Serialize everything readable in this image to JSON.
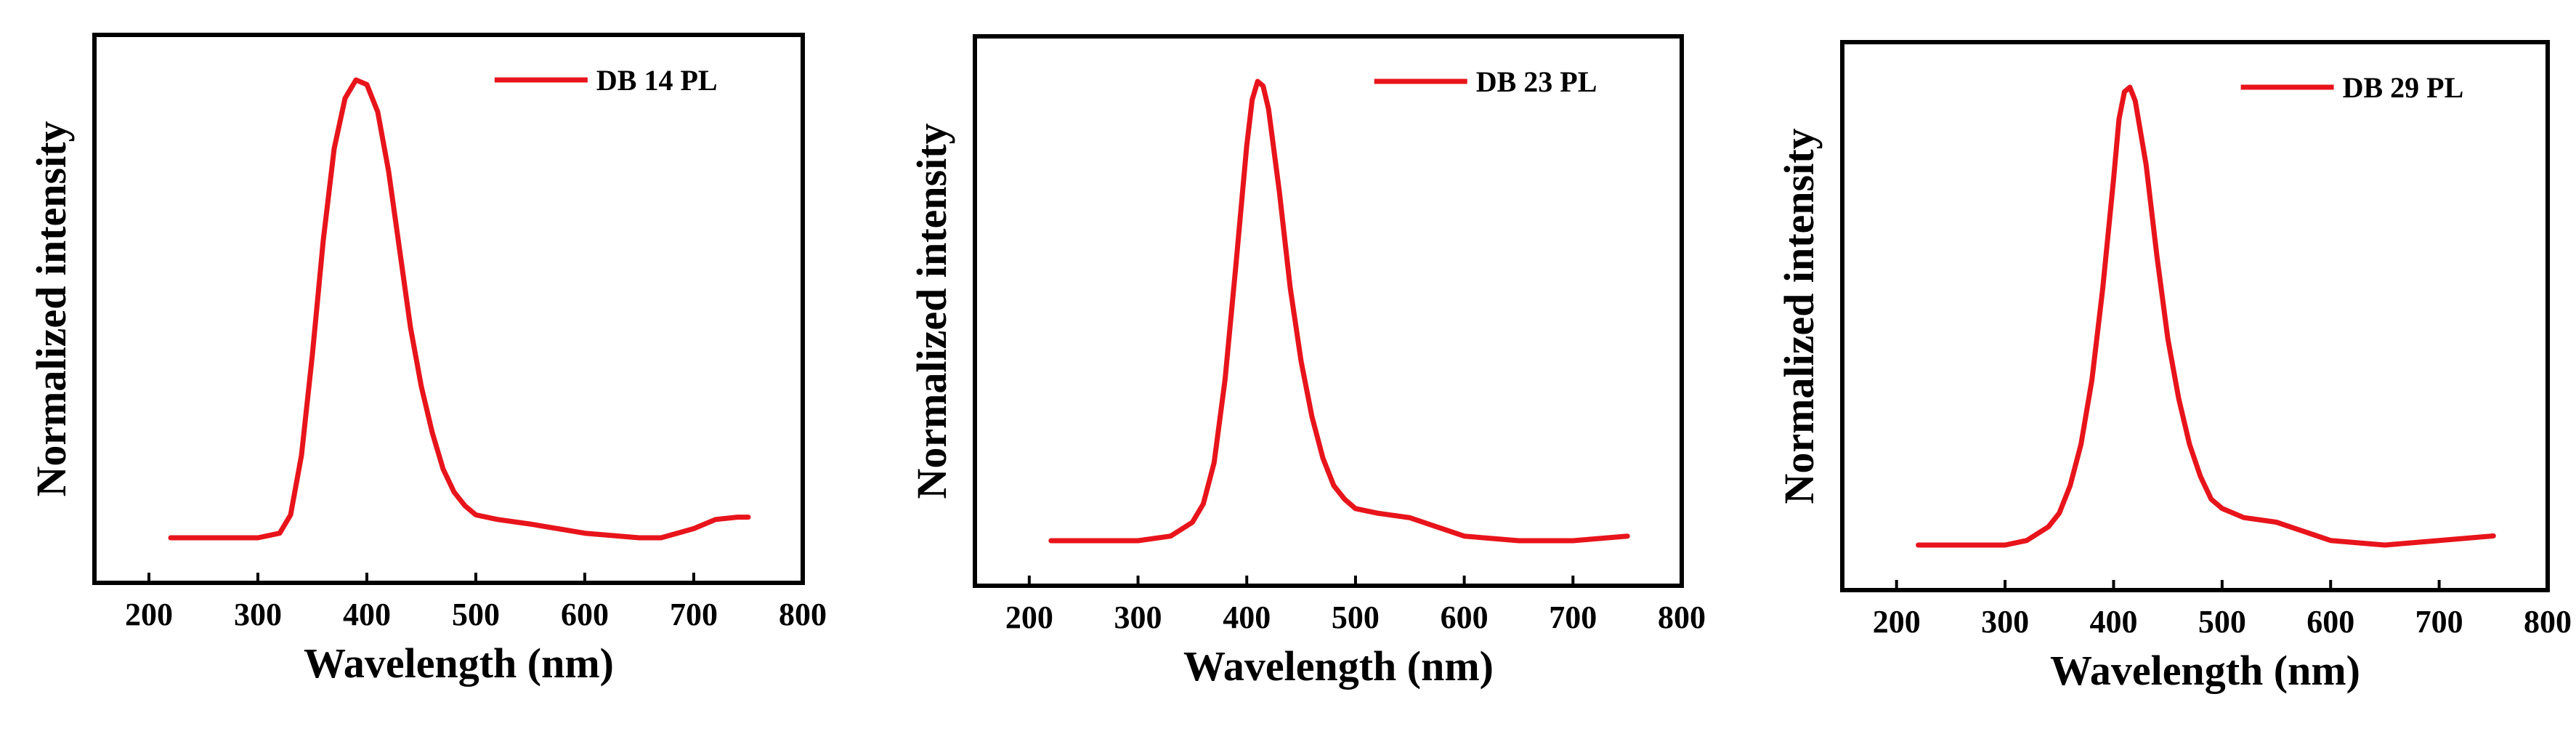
{
  "chart_data": [
    {
      "type": "line",
      "title": "",
      "xlabel": "Wavelength (nm)",
      "ylabel": "Normalized intensity",
      "xlim": [
        150,
        800
      ],
      "ylim": [
        0,
        1.06
      ],
      "xticks": [
        "200",
        "300",
        "400",
        "500",
        "600",
        "700",
        "800"
      ],
      "legend": "top-right",
      "series": [
        {
          "name": "DB 14 PL",
          "color": "#e8141b",
          "x": [
            220,
            250,
            300,
            320,
            330,
            340,
            350,
            360,
            370,
            380,
            390,
            400,
            410,
            420,
            430,
            440,
            450,
            460,
            470,
            480,
            490,
            500,
            520,
            550,
            600,
            650,
            670,
            700,
            720,
            740,
            750
          ],
          "y": [
            0.0,
            0.0,
            0.0,
            0.01,
            0.05,
            0.18,
            0.4,
            0.65,
            0.85,
            0.96,
            1.0,
            0.99,
            0.93,
            0.8,
            0.63,
            0.46,
            0.33,
            0.23,
            0.15,
            0.1,
            0.07,
            0.05,
            0.04,
            0.03,
            0.01,
            0.0,
            0.0,
            0.02,
            0.04,
            0.045,
            0.045
          ]
        }
      ]
    },
    {
      "type": "line",
      "title": "",
      "xlabel": "Wavelength (nm)",
      "ylabel": "Normalized intensity",
      "xlim": [
        150,
        800
      ],
      "ylim": [
        0,
        1.06
      ],
      "xticks": [
        "200",
        "300",
        "400",
        "500",
        "600",
        "700",
        "800"
      ],
      "legend": "top-right",
      "series": [
        {
          "name": "DB 23 PL",
          "color": "#e8141b",
          "x": [
            220,
            250,
            300,
            330,
            350,
            360,
            370,
            380,
            390,
            400,
            405,
            410,
            415,
            420,
            430,
            440,
            450,
            460,
            470,
            480,
            490,
            500,
            520,
            550,
            600,
            650,
            700,
            750
          ],
          "y": [
            0.0,
            0.0,
            0.0,
            0.01,
            0.04,
            0.08,
            0.17,
            0.35,
            0.6,
            0.86,
            0.96,
            1.0,
            0.99,
            0.94,
            0.76,
            0.55,
            0.39,
            0.27,
            0.18,
            0.12,
            0.09,
            0.07,
            0.06,
            0.05,
            0.01,
            0.0,
            0.0,
            0.01
          ]
        }
      ]
    },
    {
      "type": "line",
      "title": "",
      "xlabel": "Wavelength (nm)",
      "ylabel": "Normalized intensity",
      "xlim": [
        150,
        800
      ],
      "ylim": [
        0,
        1.06
      ],
      "xticks": [
        "200",
        "300",
        "400",
        "500",
        "600",
        "700",
        "800"
      ],
      "legend": "top-right",
      "series": [
        {
          "name": "DB 29 PL",
          "color": "#e8141b",
          "x": [
            220,
            250,
            300,
            320,
            340,
            350,
            360,
            370,
            380,
            390,
            400,
            405,
            410,
            415,
            420,
            430,
            440,
            450,
            460,
            470,
            480,
            490,
            500,
            520,
            550,
            600,
            650,
            700,
            750
          ],
          "y": [
            0.0,
            0.0,
            0.0,
            0.01,
            0.04,
            0.07,
            0.13,
            0.22,
            0.36,
            0.56,
            0.8,
            0.93,
            0.99,
            1.0,
            0.97,
            0.83,
            0.63,
            0.45,
            0.32,
            0.22,
            0.15,
            0.1,
            0.08,
            0.06,
            0.05,
            0.01,
            0.0,
            0.01,
            0.02
          ]
        }
      ]
    }
  ]
}
